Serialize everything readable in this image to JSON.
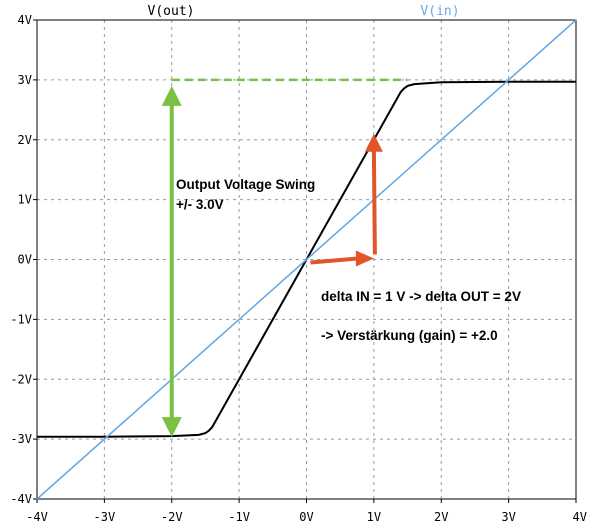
{
  "chart_data": {
    "type": "line",
    "xlim": [
      -4,
      4
    ],
    "ylim": [
      -4,
      4
    ],
    "grid": true,
    "legend_position": "top",
    "x_ticks": [
      "-4V",
      "-3V",
      "-2V",
      "-1V",
      "0V",
      "1V",
      "2V",
      "3V",
      "4V"
    ],
    "y_ticks": [
      "-4V",
      "-3V",
      "-2V",
      "-1V",
      "0V",
      "1V",
      "2V",
      "3V",
      "4V"
    ],
    "series": [
      {
        "name": "V(out)",
        "color": "#000000",
        "x": [
          -4,
          -3,
          -2,
          -1.6,
          -1.5,
          -1.45,
          -1.4,
          0,
          1.4,
          1.45,
          1.5,
          1.6,
          2,
          3,
          4
        ],
        "y": [
          -2.96,
          -2.96,
          -2.95,
          -2.93,
          -2.9,
          -2.86,
          -2.8,
          0,
          2.8,
          2.86,
          2.9,
          2.93,
          2.96,
          2.97,
          2.97
        ]
      },
      {
        "name": "V(in)",
        "color": "#6aaae4",
        "x": [
          -4,
          4
        ],
        "y": [
          -4,
          4
        ]
      }
    ],
    "annotations": {
      "swing_title": "Output Voltage Swing",
      "swing_value": "+/- 3.0V",
      "delta_text": "delta IN = 1 V -> delta OUT = 2V",
      "gain_text": "-> Verstärkung (gain) = +2.0",
      "swing_level": 3.0,
      "swing_arrow_x": -2,
      "swing_line_x_range": [
        -2,
        1.5
      ],
      "delta_arrow_from": [
        0,
        0
      ],
      "delta_arrow_corner": [
        1,
        0
      ],
      "delta_arrow_to": [
        1,
        2
      ],
      "green_color": "#7ac142",
      "dash_color": "#7ac142",
      "orange_color": "#e0552a"
    }
  }
}
